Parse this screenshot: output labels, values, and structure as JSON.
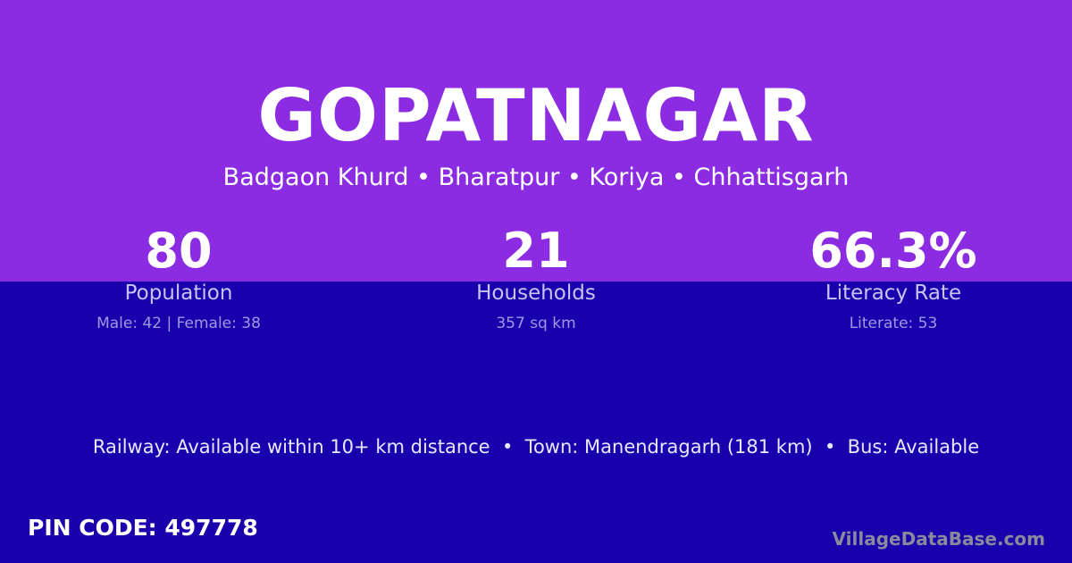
{
  "colors": {
    "top_band": "#8b2be2",
    "bottom_band": "#1a00ad",
    "brand": "#8a8a9c"
  },
  "title": "GOPATNAGAR",
  "location": "Badgaon Khurd • Bharatpur • Koriya • Chhattisgarh",
  "stats": [
    {
      "value": "80",
      "label": "Population",
      "detail": "Male: 42 | Female: 38"
    },
    {
      "value": "21",
      "label": "Households",
      "detail": "357 sq km"
    },
    {
      "value": "66.3%",
      "label": "Literacy Rate",
      "detail": "Literate: 53"
    }
  ],
  "info": "Railway: Available within 10+ km distance  •  Town: Manendragarh (181 km)  •  Bus: Available",
  "pin": "PIN CODE: 497778",
  "brand": "VillageDataBase.com"
}
